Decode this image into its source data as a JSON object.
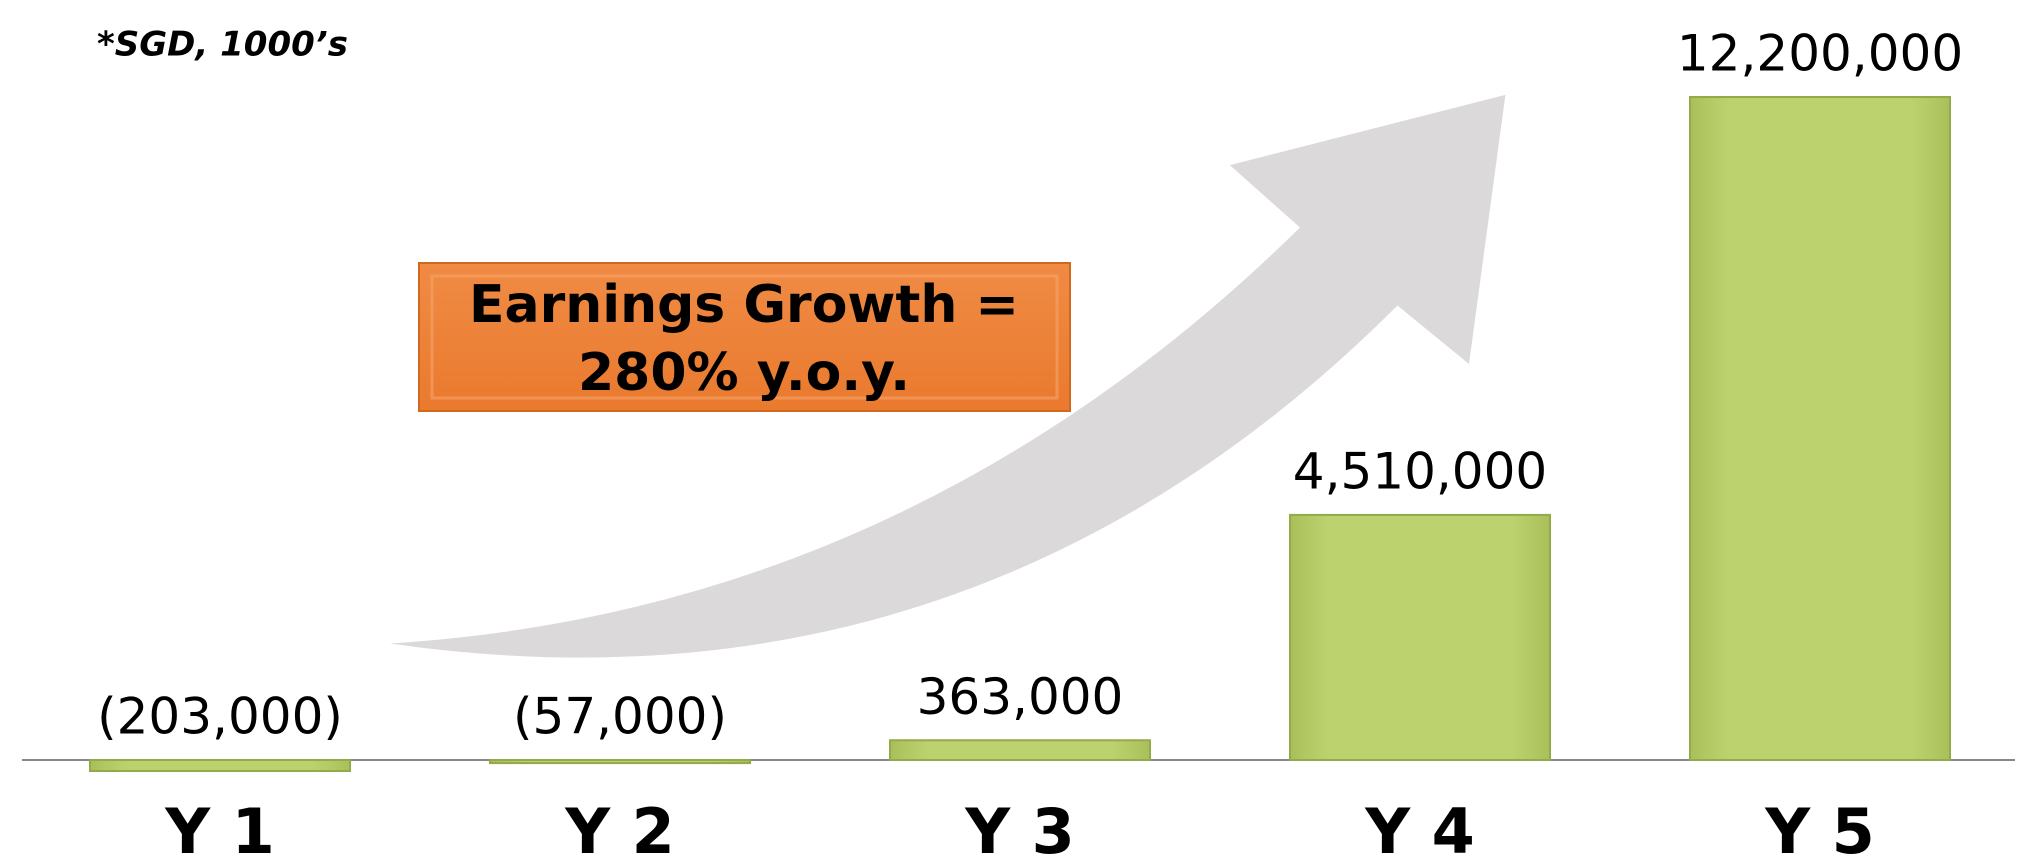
{
  "chart_data": {
    "type": "bar",
    "note": "*SGD, 1000’s",
    "annotation": [
      "Earnings Growth =",
      "280%  y.o.y."
    ],
    "categories": [
      "Y 1",
      "Y 2",
      "Y 3",
      "Y 4",
      "Y 5"
    ],
    "values": [
      -203000,
      -57000,
      363000,
      4510000,
      12200000
    ],
    "value_labels": [
      "(203,000)",
      "(57,000)",
      "363,000",
      "4,510,000",
      "12,200,000"
    ],
    "color": "#b9cf6b"
  }
}
